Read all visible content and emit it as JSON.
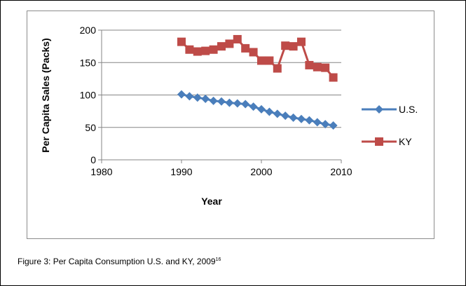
{
  "chart_data": {
    "type": "line",
    "title": "",
    "xlabel": "Year",
    "ylabel": "Per Capita Sales (Packs)",
    "xlim": [
      1980,
      2010
    ],
    "ylim": [
      0,
      200
    ],
    "x_ticks": [
      1980,
      1990,
      2000,
      2010
    ],
    "y_ticks": [
      0,
      50,
      100,
      150,
      200
    ],
    "grid": "horizontal",
    "legend_position": "right",
    "series": [
      {
        "name": "U.S.",
        "color": "#4a7ebb",
        "marker": "diamond",
        "x": [
          1990,
          1991,
          1992,
          1993,
          1994,
          1995,
          1996,
          1997,
          1998,
          1999,
          2000,
          2001,
          2002,
          2003,
          2004,
          2005,
          2006,
          2007,
          2008,
          2009
        ],
        "y": [
          101,
          98,
          96,
          94,
          91,
          90,
          88,
          87,
          86,
          82,
          78,
          74,
          71,
          68,
          65,
          63,
          61,
          58,
          55,
          53
        ]
      },
      {
        "name": "KY",
        "color": "#be4b48",
        "marker": "square",
        "x": [
          1990,
          1991,
          1992,
          1993,
          1994,
          1995,
          1996,
          1997,
          1998,
          1999,
          2000,
          2001,
          2002,
          2003,
          2004,
          2005,
          2006,
          2007,
          2008,
          2009
        ],
        "y": [
          182,
          170,
          167,
          168,
          170,
          175,
          179,
          186,
          172,
          166,
          153,
          153,
          141,
          176,
          175,
          182,
          146,
          143,
          142,
          127
        ]
      }
    ]
  },
  "caption": {
    "text": "Figure 3: Per Capita Consumption U.S. and KY, 2009",
    "superscript": "16"
  }
}
